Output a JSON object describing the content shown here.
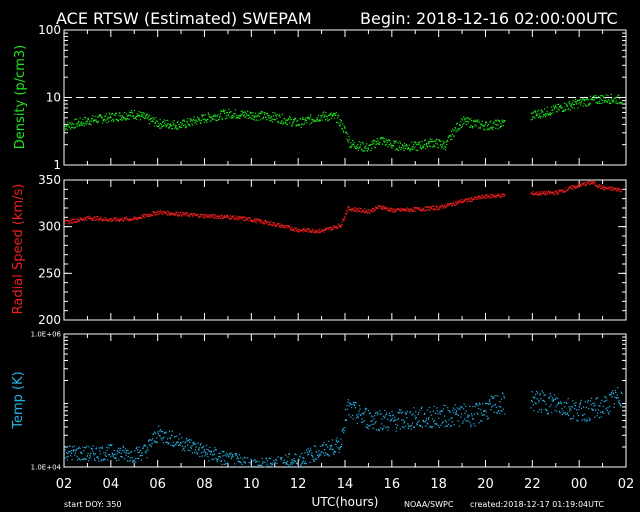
{
  "header": {
    "title": "ACE RTSW (Estimated) SWEPAM",
    "begin": "Begin: 2018-12-16 02:00:00UTC"
  },
  "footer": {
    "start_doy": "start DOY: 350",
    "xlabel": "UTC(hours)",
    "source": "NOAA/SWPC",
    "created": "created:2018-12-17 01:19:04UTC"
  },
  "colors": {
    "density": "#1ee61e",
    "speed": "#f01e1e",
    "temp": "#28b4e6",
    "axes": "#ffffff",
    "background": "#000000"
  },
  "chart_data": [
    {
      "type": "scatter",
      "ylabel": "Density (p/cm3)",
      "yscale": "log",
      "ylim": [
        1,
        100
      ],
      "yticks": [
        "1",
        "10",
        "100"
      ],
      "xlim": [
        2,
        26
      ],
      "reference_line": 10,
      "x": [
        2,
        3,
        4,
        5,
        6,
        7,
        8,
        9,
        10,
        11,
        12,
        13,
        13.6,
        14.2,
        15,
        15.5,
        16,
        17,
        17.7,
        18.3,
        19,
        20,
        20.6,
        22,
        23,
        24,
        25,
        25.8
      ],
      "values": [
        3.8,
        4.6,
        5.2,
        5.8,
        4.2,
        4.0,
        5.0,
        5.9,
        5.6,
        5.2,
        4.2,
        5.4,
        5.2,
        2.1,
        1.8,
        2.4,
        2.0,
        1.9,
        2.2,
        2.0,
        4.5,
        3.9,
        4.1,
        5.5,
        6.8,
        8.5,
        9.8,
        9.5
      ]
    },
    {
      "type": "scatter",
      "ylabel": "Radial Speed (km/s)",
      "ylim": [
        200,
        350
      ],
      "yticks": [
        "200",
        "250",
        "300",
        "350"
      ],
      "xlim": [
        2,
        26
      ],
      "x": [
        2,
        3,
        4,
        5,
        6,
        7,
        8,
        9,
        10,
        11,
        12,
        13,
        13.8,
        14.1,
        15,
        15.5,
        16,
        17,
        18,
        19,
        20,
        20.7,
        22,
        23,
        24,
        24.5,
        25,
        25.8
      ],
      "values": [
        305,
        310,
        308,
        309,
        316,
        314,
        312,
        311,
        308,
        303,
        297,
        296,
        302,
        320,
        317,
        322,
        318,
        319,
        321,
        328,
        333,
        334,
        336,
        337,
        345,
        348,
        342,
        340
      ]
    },
    {
      "type": "scatter",
      "ylabel": "Temp (K)",
      "yscale": "log",
      "ylim": [
        10000,
        1000000
      ],
      "yticks": [
        "1.0E+04",
        "1.0E+06"
      ],
      "xlim": [
        2,
        26
      ],
      "x": [
        2,
        3,
        4,
        5,
        5.5,
        6,
        7,
        8,
        9,
        10,
        10.5,
        11,
        12,
        13,
        13.8,
        14.1,
        14.6,
        15,
        16,
        17,
        18,
        19,
        19.5,
        20,
        20.6,
        22,
        23,
        24,
        25,
        25.8
      ],
      "values": [
        17000,
        16000,
        17000,
        15500,
        18000,
        32000,
        24000,
        17000,
        13000,
        11000,
        10500,
        11500,
        13000,
        18000,
        22000,
        75000,
        60000,
        55000,
        50000,
        55000,
        58000,
        62000,
        60000,
        75000,
        90000,
        100000,
        90000,
        70000,
        80000,
        120000
      ]
    }
  ],
  "xaxis": {
    "ticks": [
      "02",
      "04",
      "06",
      "08",
      "10",
      "12",
      "14",
      "16",
      "18",
      "20",
      "22",
      "00",
      "02"
    ]
  }
}
